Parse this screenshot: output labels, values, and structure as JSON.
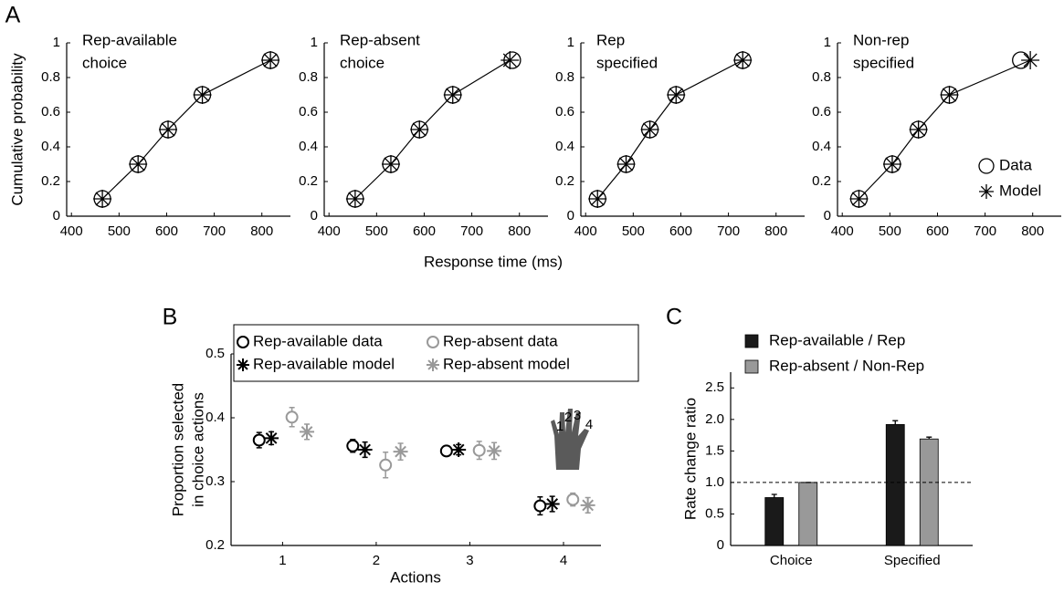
{
  "chart_data": [
    {
      "type": "line",
      "panel": "A",
      "title": [
        "Rep-available",
        "choice"
      ],
      "ylabel": "Cumulative probability",
      "xlabel": "Response time (ms)",
      "xlim": [
        390,
        860
      ],
      "xticks": [
        400,
        500,
        600,
        700,
        800
      ],
      "ylim": [
        0,
        1
      ],
      "yticks": [
        0,
        0.2,
        0.4,
        0.6,
        0.8,
        1
      ],
      "series": [
        {
          "name": "Data",
          "marker": "o",
          "color": "#000000",
          "x": [
            465,
            540,
            603,
            675,
            818
          ],
          "values": [
            0.1,
            0.3,
            0.5,
            0.7,
            0.9
          ]
        },
        {
          "name": "Model",
          "marker": "*",
          "line": true,
          "color": "#000000",
          "x": [
            465,
            540,
            603,
            675,
            818
          ],
          "values": [
            0.1,
            0.3,
            0.5,
            0.7,
            0.9
          ]
        }
      ]
    },
    {
      "type": "line",
      "title": [
        "Rep-absent",
        "choice"
      ],
      "xlim": [
        390,
        860
      ],
      "xticks": [
        400,
        500,
        600,
        700,
        800
      ],
      "ylim": [
        0,
        1
      ],
      "yticks": [
        0,
        0.2,
        0.4,
        0.6,
        0.8,
        1
      ],
      "series": [
        {
          "name": "Data",
          "marker": "o",
          "color": "#000000",
          "x": [
            455,
            530,
            590,
            660,
            785
          ],
          "values": [
            0.1,
            0.3,
            0.5,
            0.7,
            0.9
          ]
        },
        {
          "name": "Model",
          "marker": "*",
          "line": true,
          "color": "#000000",
          "x": [
            455,
            530,
            590,
            660,
            780
          ],
          "values": [
            0.1,
            0.3,
            0.5,
            0.7,
            0.9
          ]
        }
      ]
    },
    {
      "type": "line",
      "title": [
        "Rep",
        "specified"
      ],
      "xlim": [
        390,
        860
      ],
      "xticks": [
        400,
        500,
        600,
        700,
        800
      ],
      "ylim": [
        0,
        1
      ],
      "yticks": [
        0,
        0.2,
        0.4,
        0.6,
        0.8,
        1
      ],
      "series": [
        {
          "name": "Data",
          "marker": "o",
          "color": "#000000",
          "x": [
            425,
            485,
            535,
            590,
            730
          ],
          "values": [
            0.1,
            0.3,
            0.5,
            0.7,
            0.9
          ]
        },
        {
          "name": "Model",
          "marker": "*",
          "line": true,
          "color": "#000000",
          "x": [
            425,
            485,
            535,
            590,
            730
          ],
          "values": [
            0.1,
            0.3,
            0.5,
            0.7,
            0.9
          ]
        }
      ]
    },
    {
      "type": "line",
      "title": [
        "Non-rep",
        "specified"
      ],
      "legend": "lower right",
      "xlim": [
        390,
        860
      ],
      "xticks": [
        400,
        500,
        600,
        700,
        800
      ],
      "ylim": [
        0,
        1
      ],
      "yticks": [
        0,
        0.2,
        0.4,
        0.6,
        0.8,
        1
      ],
      "series": [
        {
          "name": "Data",
          "marker": "o",
          "color": "#000000",
          "x": [
            435,
            505,
            560,
            625,
            775
          ],
          "values": [
            0.1,
            0.3,
            0.5,
            0.7,
            0.9
          ]
        },
        {
          "name": "Model",
          "marker": "*",
          "line": true,
          "color": "#000000",
          "x": [
            435,
            505,
            560,
            625,
            795
          ],
          "values": [
            0.1,
            0.3,
            0.5,
            0.7,
            0.9
          ]
        }
      ]
    },
    {
      "type": "errorbar",
      "panel": "B",
      "ylabel": [
        "Proportion selected",
        "in choice actions"
      ],
      "xlabel": "Actions",
      "legend": "top",
      "x": [
        1,
        2,
        3,
        4
      ],
      "xlim": [
        0.45,
        4.4
      ],
      "xticks": [
        1,
        2,
        3,
        4
      ],
      "ylim": [
        0.2,
        0.5
      ],
      "yticks": [
        0.2,
        0.3,
        0.4,
        0.5
      ],
      "annotation": [
        "1",
        "2",
        "3",
        "4"
      ],
      "series": [
        {
          "name": "Rep-available data",
          "marker": "o",
          "color": "#000000",
          "values": [
            0.365,
            0.356,
            0.348,
            0.262
          ],
          "errors": [
            0.012,
            0.01,
            0.006,
            0.014
          ]
        },
        {
          "name": "Rep-absent data",
          "marker": "o",
          "color": "#999999",
          "values": [
            0.401,
            0.326,
            0.349,
            0.272
          ],
          "errors": [
            0.015,
            0.02,
            0.014,
            0.01
          ]
        },
        {
          "name": "Rep-available model",
          "marker": "*",
          "color": "#000000",
          "values": [
            0.368,
            0.35,
            0.35,
            0.265
          ],
          "errors": [
            0.01,
            0.012,
            0.008,
            0.012
          ]
        },
        {
          "name": "Rep-absent model",
          "marker": "*",
          "color": "#999999",
          "values": [
            0.378,
            0.347,
            0.348,
            0.263
          ],
          "errors": [
            0.012,
            0.013,
            0.013,
            0.012
          ]
        }
      ]
    },
    {
      "type": "bar",
      "panel": "C",
      "ylabel": "Rate change ratio",
      "legend": "top left",
      "categories": [
        "Choice",
        "Specified"
      ],
      "ylim": [
        0,
        2.75
      ],
      "yticks": [
        0,
        0.5,
        {
          "value": 1,
          "label": "1.0"
        },
        1.5,
        {
          "value": 2,
          "label": "2.0"
        },
        2.5
      ],
      "hline": 1,
      "series": [
        {
          "name": "Rep-available / Rep",
          "color": "#1a1a1a",
          "values": [
            0.76,
            1.92
          ],
          "errors": [
            0.05,
            0.06
          ]
        },
        {
          "name": "Rep-absent / Non-Rep",
          "color": "#999999",
          "values": [
            1.0,
            1.69
          ],
          "errors": [
            0,
            0.03
          ]
        }
      ]
    }
  ]
}
